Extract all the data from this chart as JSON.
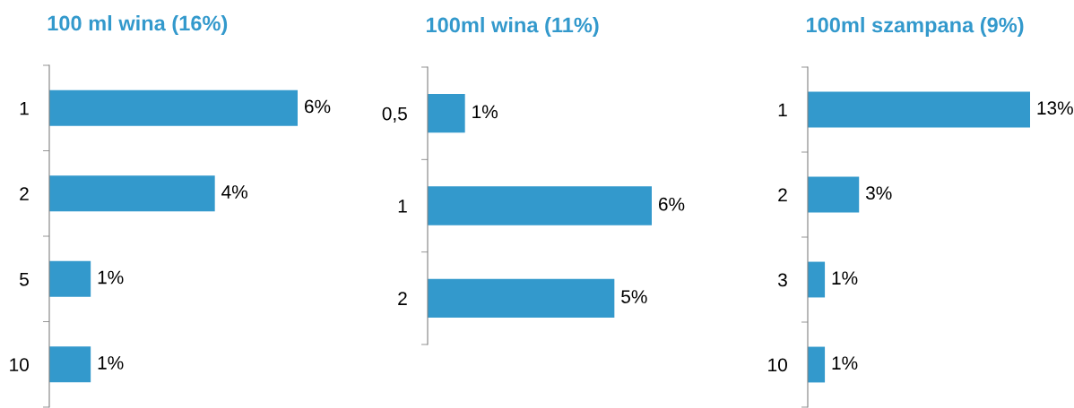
{
  "chart_data": [
    {
      "type": "bar",
      "orientation": "horizontal",
      "title": "100 ml wina (16%)",
      "categories": [
        "1",
        "2",
        "5",
        "10"
      ],
      "values": [
        6,
        4,
        1,
        1
      ],
      "value_labels": [
        "6%",
        "4%",
        "1%",
        "1%"
      ],
      "color": "#3399cc",
      "tick_labels": "y"
    },
    {
      "type": "bar",
      "orientation": "horizontal",
      "title": "100ml wina (11%)",
      "categories": [
        "0,5",
        "1",
        "2"
      ],
      "values": [
        1,
        6,
        5
      ],
      "value_labels": [
        "1%",
        "6%",
        "5%"
      ],
      "color": "#3399cc",
      "tick_labels": "y"
    },
    {
      "type": "bar",
      "orientation": "horizontal",
      "title": "100ml szampana (9%)",
      "categories": [
        "1",
        "2",
        "3",
        "10"
      ],
      "values": [
        13,
        3,
        1,
        1
      ],
      "value_labels": [
        "13%",
        "3%",
        "1%",
        "1%"
      ],
      "color": "#3399cc",
      "tick_labels": "y"
    }
  ]
}
